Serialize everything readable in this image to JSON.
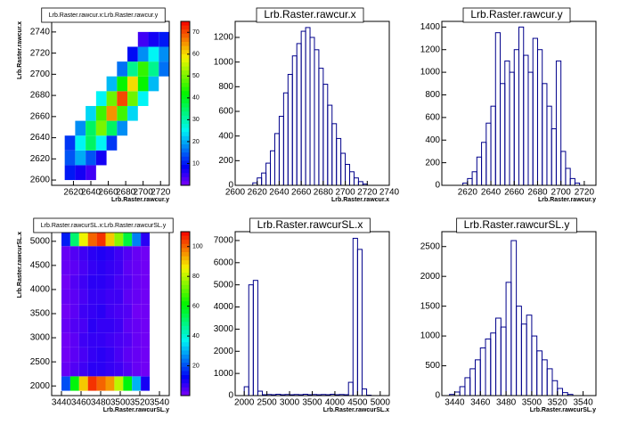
{
  "chart_data": [
    {
      "type": "heatmap",
      "title": "Lrb.Raster.rawcur.x:Lrb.Raster.rawcur.y",
      "xlabel": "Lrb.Raster.rawcur.y",
      "ylabel": "Lrb.Raster.rawcur.x",
      "xlim": [
        2595,
        2730
      ],
      "ylim": [
        2595,
        2750
      ],
      "xticks": [
        2620,
        2640,
        2660,
        2680,
        2700,
        2720
      ],
      "yticks": [
        2600,
        2620,
        2640,
        2660,
        2680,
        2700,
        2720,
        2740
      ],
      "xbins": [
        2610,
        2622,
        2634,
        2646,
        2658,
        2670,
        2682,
        2694,
        2706,
        2718,
        2730
      ],
      "ybins": [
        2600,
        2614,
        2628,
        2642,
        2656,
        2670,
        2684,
        2698,
        2712,
        2726,
        2740
      ],
      "z": [
        [
          10,
          7,
          4,
          0,
          0,
          0,
          0,
          0,
          0,
          0
        ],
        [
          14,
          20,
          14,
          7,
          0,
          0,
          0,
          0,
          0,
          0
        ],
        [
          12,
          25,
          35,
          25,
          12,
          0,
          0,
          0,
          0,
          0
        ],
        [
          0,
          18,
          35,
          50,
          35,
          18,
          0,
          0,
          0,
          0
        ],
        [
          0,
          0,
          23,
          46,
          65,
          46,
          23,
          0,
          0,
          0
        ],
        [
          0,
          0,
          0,
          25,
          49,
          70,
          49,
          25,
          0,
          0
        ],
        [
          0,
          0,
          0,
          0,
          21,
          42,
          60,
          42,
          21,
          0
        ],
        [
          0,
          0,
          0,
          0,
          0,
          16,
          32,
          45,
          32,
          16
        ],
        [
          0,
          0,
          0,
          0,
          0,
          0,
          9,
          18,
          25,
          18
        ],
        [
          0,
          0,
          0,
          0,
          0,
          0,
          0,
          4,
          7,
          10
        ]
      ],
      "zlim": [
        0,
        75
      ],
      "zticks": [
        10,
        20,
        30,
        40,
        50,
        60,
        70
      ]
    },
    {
      "type": "histogram",
      "title": "Lrb.Raster.rawcur.x",
      "xlabel": "Lrb.Raster.rawcur.x",
      "color": "#00008b",
      "xlim": [
        2600,
        2740
      ],
      "ylim": [
        0,
        1330
      ],
      "xticks": [
        2600,
        2620,
        2640,
        2660,
        2680,
        2700,
        2720,
        2740
      ],
      "yticks": [
        0,
        200,
        400,
        600,
        800,
        1000,
        1200
      ],
      "bins": [
        2616,
        2620,
        2624,
        2628,
        2632,
        2636,
        2640,
        2644,
        2648,
        2652,
        2656,
        2660,
        2664,
        2668,
        2672,
        2676,
        2680,
        2684,
        2688,
        2692,
        2696,
        2700,
        2704,
        2708,
        2712,
        2716,
        2720
      ],
      "values": [
        20,
        60,
        100,
        180,
        280,
        420,
        560,
        750,
        900,
        1050,
        1150,
        1250,
        1280,
        1200,
        1100,
        950,
        820,
        650,
        500,
        380,
        260,
        170,
        110,
        60,
        30,
        10
      ]
    },
    {
      "type": "histogram",
      "title": "Lrb.Raster.rawcur.y",
      "xlabel": "Lrb.Raster.rawcur.y",
      "color": "#00008b",
      "xlim": [
        2598,
        2730
      ],
      "ylim": [
        0,
        1450
      ],
      "xticks": [
        2620,
        2640,
        2660,
        2680,
        2700,
        2720
      ],
      "yticks": [
        0,
        200,
        400,
        600,
        800,
        1000,
        1200,
        1400
      ],
      "bins": [
        2616,
        2620,
        2624,
        2628,
        2632,
        2636,
        2640,
        2644,
        2648,
        2652,
        2656,
        2660,
        2664,
        2668,
        2672,
        2676,
        2680,
        2684,
        2688,
        2692,
        2696,
        2700,
        2704,
        2708,
        2712,
        2716
      ],
      "values": [
        20,
        60,
        120,
        250,
        380,
        550,
        700,
        1350,
        900,
        1100,
        1000,
        1200,
        1400,
        1150,
        1000,
        1300,
        1200,
        900,
        700,
        500,
        1100,
        300,
        150,
        60,
        20
      ]
    },
    {
      "type": "heatmap",
      "title": "Lrb.Raster.rawcurSL.x:Lrb.Raster.rawcurSL.y",
      "xlabel": "Lrb.Raster.rawcurSL.y",
      "ylabel": "Lrb.Raster.rawcurSL.x",
      "xlim": [
        3430,
        3550
      ],
      "ylim": [
        1800,
        5200
      ],
      "xticks": [
        3440,
        3460,
        3480,
        3500,
        3520,
        3540
      ],
      "yticks": [
        2000,
        2500,
        3000,
        3500,
        4000,
        4500,
        5000
      ],
      "xbins": [
        3440,
        3449,
        3458,
        3467,
        3476,
        3485,
        3494,
        3503,
        3512,
        3521,
        3530
      ],
      "ybins": [
        1900,
        2200,
        2500,
        2800,
        3100,
        3400,
        3700,
        4000,
        4300,
        4600,
        4900,
        5200
      ],
      "z": [
        [
          20,
          60,
          90,
          105,
          100,
          95,
          80,
          60,
          30,
          10
        ],
        [
          2,
          4,
          6,
          8,
          8,
          7,
          6,
          4,
          2,
          1
        ],
        [
          1,
          3,
          5,
          7,
          8,
          7,
          5,
          3,
          2,
          1
        ],
        [
          1,
          3,
          6,
          7,
          7,
          6,
          5,
          4,
          2,
          1
        ],
        [
          2,
          4,
          5,
          8,
          7,
          7,
          6,
          3,
          2,
          1
        ],
        [
          1,
          3,
          6,
          7,
          8,
          6,
          5,
          4,
          1,
          1
        ],
        [
          2,
          3,
          5,
          7,
          7,
          6,
          6,
          3,
          2,
          1
        ],
        [
          1,
          4,
          6,
          8,
          8,
          7,
          5,
          4,
          2,
          1
        ],
        [
          2,
          3,
          5,
          7,
          8,
          7,
          6,
          3,
          2,
          1
        ],
        [
          2,
          4,
          6,
          8,
          9,
          8,
          6,
          4,
          2,
          1
        ],
        [
          15,
          50,
          85,
          100,
          105,
          90,
          75,
          55,
          25,
          8
        ]
      ],
      "zlim": [
        0,
        110
      ],
      "zticks": [
        20,
        40,
        60,
        80,
        100
      ]
    },
    {
      "type": "histogram",
      "title": "Lrb.Raster.rawcurSL.x",
      "xlabel": "Lrb.Raster.rawcurSL.x",
      "color": "#00008b",
      "xlim": [
        1800,
        5200
      ],
      "ylim": [
        0,
        7400
      ],
      "xticks": [
        2000,
        2500,
        3000,
        3500,
        4000,
        4500,
        5000
      ],
      "yticks": [
        0,
        1000,
        2000,
        3000,
        4000,
        5000,
        6000,
        7000
      ],
      "bins": [
        1900,
        2000,
        2100,
        2200,
        2300,
        2400,
        2500,
        2600,
        2700,
        2800,
        2900,
        3000,
        3100,
        3200,
        3300,
        3400,
        3500,
        3600,
        3700,
        3800,
        3900,
        4000,
        4100,
        4200,
        4300,
        4400,
        4500,
        4600,
        4700,
        4800,
        4900,
        5000,
        5100
      ],
      "values": [
        0,
        400,
        5000,
        5200,
        200,
        40,
        50,
        40,
        60,
        40,
        50,
        40,
        50,
        40,
        60,
        40,
        50,
        40,
        50,
        40,
        60,
        40,
        50,
        40,
        600,
        7100,
        6600,
        300,
        20,
        0,
        0,
        0
      ]
    },
    {
      "type": "histogram",
      "title": "Lrb.Raster.rawcurSL.y",
      "xlabel": "Lrb.Raster.rawcurSL.y",
      "color": "#00008b",
      "xlim": [
        3430,
        3550
      ],
      "ylim": [
        0,
        2750
      ],
      "xticks": [
        3440,
        3460,
        3480,
        3500,
        3520,
        3540
      ],
      "yticks": [
        0,
        500,
        1000,
        1500,
        2000,
        2500
      ],
      "bins": [
        3436,
        3440,
        3444,
        3448,
        3452,
        3456,
        3460,
        3464,
        3468,
        3472,
        3476,
        3480,
        3484,
        3488,
        3492,
        3496,
        3500,
        3504,
        3508,
        3512,
        3516,
        3520,
        3524,
        3528,
        3532
      ],
      "values": [
        20,
        60,
        150,
        300,
        450,
        600,
        800,
        950,
        1050,
        1300,
        1150,
        1900,
        2600,
        1500,
        1200,
        1350,
        1000,
        750,
        600,
        450,
        250,
        120,
        50,
        20
      ]
    }
  ]
}
